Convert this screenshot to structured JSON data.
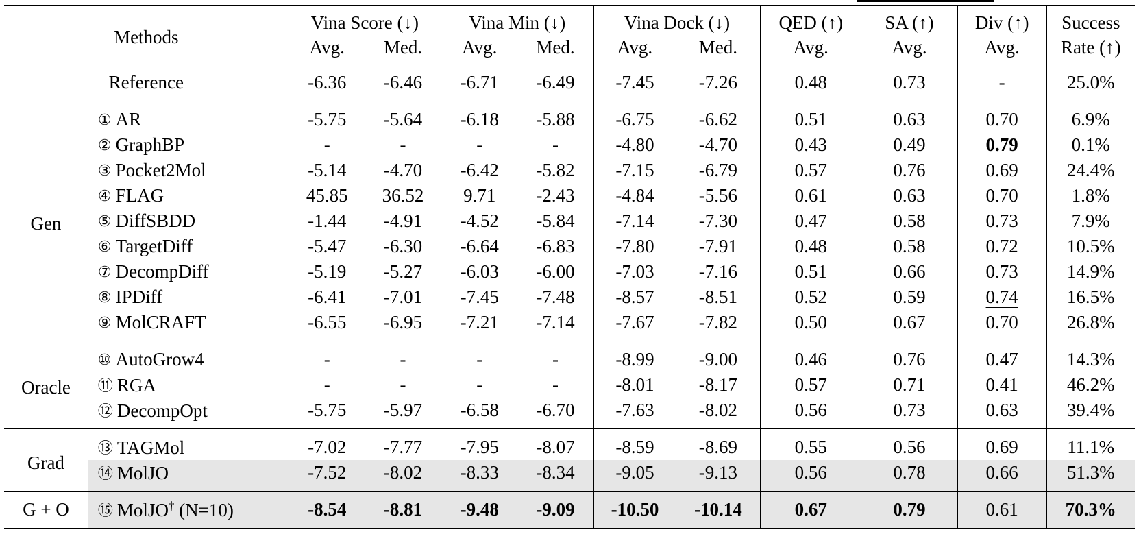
{
  "header": {
    "methods": "Methods",
    "vina_score": "Vina Score (↓)",
    "vina_min": "Vina Min (↓)",
    "vina_dock": "Vina Dock (↓)",
    "qed": "QED (↑)",
    "sa": "SA (↑)",
    "div": "Div (↑)",
    "success": "Success",
    "success2": "Rate (↑)",
    "avg": "Avg.",
    "med": "Med."
  },
  "reference": {
    "name": "Reference",
    "vals": [
      "-6.36",
      "-6.46",
      "-6.71",
      "-6.49",
      "-7.45",
      "-7.26",
      "0.48",
      "0.73",
      "-",
      "25.0%"
    ]
  },
  "groups": {
    "gen": "Gen",
    "oracle": "Oracle",
    "grad": "Grad",
    "go": "G + O"
  },
  "rows": [
    {
      "n": "①",
      "name": "AR",
      "vals": [
        "-5.75",
        "-5.64",
        "-6.18",
        "-5.88",
        "-6.75",
        "-6.62",
        "0.51",
        "0.63",
        "0.70",
        "6.9%"
      ]
    },
    {
      "n": "②",
      "name": "GraphBP",
      "vals": [
        "-",
        "-",
        "-",
        "-",
        "-4.80",
        "-4.70",
        "0.43",
        "0.49",
        "0.79",
        "0.1%"
      ]
    },
    {
      "n": "③",
      "name": "Pocket2Mol",
      "vals": [
        "-5.14",
        "-4.70",
        "-6.42",
        "-5.82",
        "-7.15",
        "-6.79",
        "0.57",
        "0.76",
        "0.69",
        "24.4%"
      ]
    },
    {
      "n": "④",
      "name": "FLAG",
      "vals": [
        "45.85",
        "36.52",
        "9.71",
        "-2.43",
        "-4.84",
        "-5.56",
        "0.61",
        "0.63",
        "0.70",
        "1.8%"
      ]
    },
    {
      "n": "⑤",
      "name": "DiffSBDD",
      "vals": [
        "-1.44",
        "-4.91",
        "-4.52",
        "-5.84",
        "-7.14",
        "-7.30",
        "0.47",
        "0.58",
        "0.73",
        "7.9%"
      ]
    },
    {
      "n": "⑥",
      "name": "TargetDiff",
      "vals": [
        "-5.47",
        "-6.30",
        "-6.64",
        "-6.83",
        "-7.80",
        "-7.91",
        "0.48",
        "0.58",
        "0.72",
        "10.5%"
      ]
    },
    {
      "n": "⑦",
      "name": "DecompDiff",
      "vals": [
        "-5.19",
        "-5.27",
        "-6.03",
        "-6.00",
        "-7.03",
        "-7.16",
        "0.51",
        "0.66",
        "0.73",
        "14.9%"
      ]
    },
    {
      "n": "⑧",
      "name": "IPDiff",
      "vals": [
        "-6.41",
        "-7.01",
        "-7.45",
        "-7.48",
        "-8.57",
        "-8.51",
        "0.52",
        "0.59",
        "0.74",
        "16.5%"
      ]
    },
    {
      "n": "⑨",
      "name": "MolCRAFT",
      "vals": [
        "-6.55",
        "-6.95",
        "-7.21",
        "-7.14",
        "-7.67",
        "-7.82",
        "0.50",
        "0.67",
        "0.70",
        "26.8%"
      ]
    },
    {
      "n": "⑩",
      "name": "AutoGrow4",
      "vals": [
        "-",
        "-",
        "-",
        "-",
        "-8.99",
        "-9.00",
        "0.46",
        "0.76",
        "0.47",
        "14.3%"
      ]
    },
    {
      "n": "⑪",
      "name": "RGA",
      "vals": [
        "-",
        "-",
        "-",
        "-",
        "-8.01",
        "-8.17",
        "0.57",
        "0.71",
        "0.41",
        "46.2%"
      ]
    },
    {
      "n": "⑫",
      "name": "DecompOpt",
      "vals": [
        "-5.75",
        "-5.97",
        "-6.58",
        "-6.70",
        "-7.63",
        "-8.02",
        "0.56",
        "0.73",
        "0.63",
        "39.4%"
      ]
    },
    {
      "n": "⑬",
      "name": "TAGMol",
      "vals": [
        "-7.02",
        "-7.77",
        "-7.95",
        "-8.07",
        "-8.59",
        "-8.69",
        "0.55",
        "0.56",
        "0.69",
        "11.1%"
      ]
    },
    {
      "n": "⑭",
      "name": "MolJO",
      "vals": [
        "-7.52",
        "-8.02",
        "-8.33",
        "-8.34",
        "-9.05",
        "-9.13",
        "0.56",
        "0.78",
        "0.66",
        "51.3%"
      ]
    },
    {
      "n": "⑮",
      "name": "MolJO",
      "sup": "†",
      "suffix": "(N=10)",
      "vals": [
        "-8.54",
        "-8.81",
        "-9.48",
        "-9.09",
        "-10.50",
        "-10.14",
        "0.67",
        "0.79",
        "0.61",
        "70.3%"
      ]
    }
  ]
}
